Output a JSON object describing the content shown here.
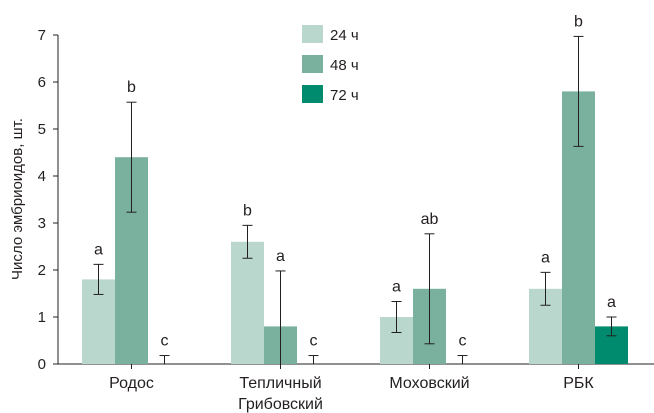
{
  "chart_data": {
    "type": "bar",
    "title": "",
    "xlabel": "",
    "ylabel": "Число эмбриоидов, шт.",
    "ylim": [
      0,
      7
    ],
    "yticks": [
      0,
      1,
      2,
      3,
      4,
      5,
      6,
      7
    ],
    "categories": [
      [
        "Родос"
      ],
      [
        "Тепличный",
        "Грибовский"
      ],
      [
        "Моховский"
      ],
      [
        "РБК"
      ]
    ],
    "series": [
      {
        "name": "24 ч",
        "color": "#b9d7cc",
        "values": [
          1.8,
          2.6,
          1.0,
          1.6
        ],
        "errors": [
          0.32,
          0.35,
          0.33,
          0.35
        ],
        "labels": [
          "a",
          "b",
          "a",
          "a"
        ]
      },
      {
        "name": "48 ч",
        "color": "#79b19e",
        "values": [
          4.4,
          0.8,
          1.6,
          5.8
        ],
        "errors": [
          1.17,
          1.18,
          1.17,
          1.17
        ],
        "labels": [
          "b",
          "a",
          "ab",
          "b"
        ]
      },
      {
        "name": "72 ч",
        "color": "#008a6e",
        "values": [
          0,
          0,
          0,
          0.8
        ],
        "errors": [
          0.18,
          0.18,
          0.18,
          0.2
        ],
        "labels": [
          "c",
          "c",
          "c",
          "a"
        ]
      }
    ],
    "legend": "top-center",
    "grid": false
  }
}
